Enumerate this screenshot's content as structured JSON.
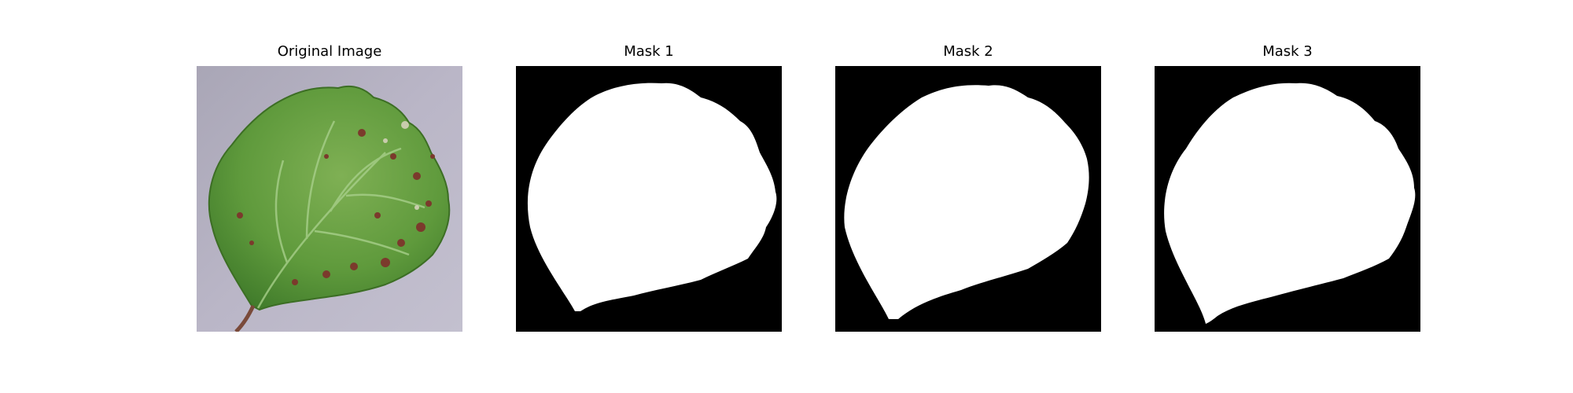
{
  "panels": [
    {
      "title": "Original Image",
      "image": "leaf-photo"
    },
    {
      "title": "Mask 1",
      "image": "binary-mask"
    },
    {
      "title": "Mask 2",
      "image": "binary-mask"
    },
    {
      "title": "Mask 3",
      "image": "binary-mask"
    }
  ],
  "colors": {
    "background": "#ffffff",
    "mask_foreground": "#ffffff",
    "mask_background": "#000000",
    "photo_background": "#b7b3c4",
    "leaf_green": "#5f9a3c",
    "leaf_spot": "#7b3a2c",
    "leaf_stem": "#7a4a3a"
  }
}
